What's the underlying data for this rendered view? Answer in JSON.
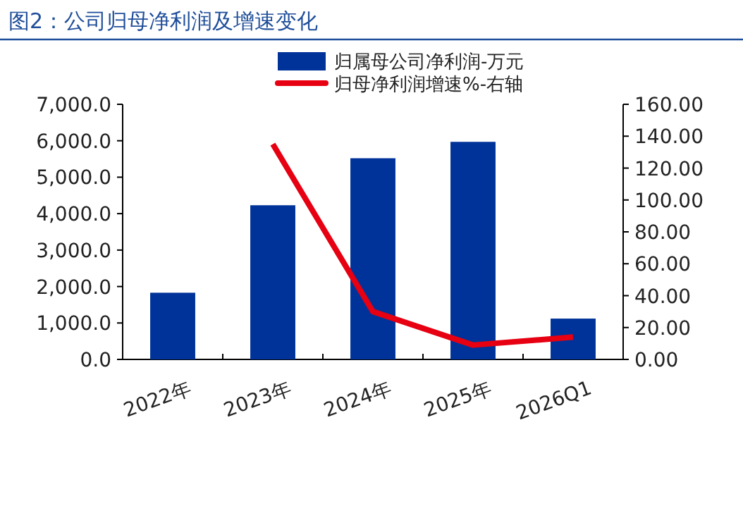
{
  "chart_data": {
    "type": "bar",
    "title": "图2：公司归母净利润及增速变化",
    "categories": [
      "2022年",
      "2023年",
      "2024年",
      "2025年",
      "2026Q1"
    ],
    "series": [
      {
        "name": "归属母公司净利润-万元",
        "color": "#003399",
        "values": [
          1830,
          4230,
          5520,
          5970,
          1120
        ]
      },
      {
        "name": "归母净利润增速%-右轴",
        "color": "#e60012",
        "type": "line",
        "axis": "y2",
        "values": [
          null,
          135,
          30,
          9,
          14
        ]
      }
    ],
    "ylim": [
      0,
      7000
    ],
    "yticks": [
      {
        "value": 0,
        "label": "0.0"
      },
      {
        "value": 1000,
        "label": "1,000.0"
      },
      {
        "value": 2000,
        "label": "2,000.0"
      },
      {
        "value": 3000,
        "label": "3,000.0"
      },
      {
        "value": 4000,
        "label": "4,000.0"
      },
      {
        "value": 5000,
        "label": "5,000.0"
      },
      {
        "value": 6000,
        "label": "6,000.0"
      },
      {
        "value": 7000,
        "label": "7,000.0"
      }
    ],
    "y2lim": [
      0,
      160
    ],
    "y2ticks": [
      {
        "value": 0,
        "label": "0.00"
      },
      {
        "value": 20,
        "label": "20.00"
      },
      {
        "value": 40,
        "label": "40.00"
      },
      {
        "value": 60,
        "label": "60.00"
      },
      {
        "value": 80,
        "label": "80.00"
      },
      {
        "value": 100,
        "label": "100.00"
      },
      {
        "value": 120,
        "label": "120.00"
      },
      {
        "value": 140,
        "label": "140.00"
      },
      {
        "value": 160,
        "label": "160.00"
      }
    ],
    "legend": "top",
    "grid": false,
    "marker": "none",
    "line_style": "solid"
  }
}
